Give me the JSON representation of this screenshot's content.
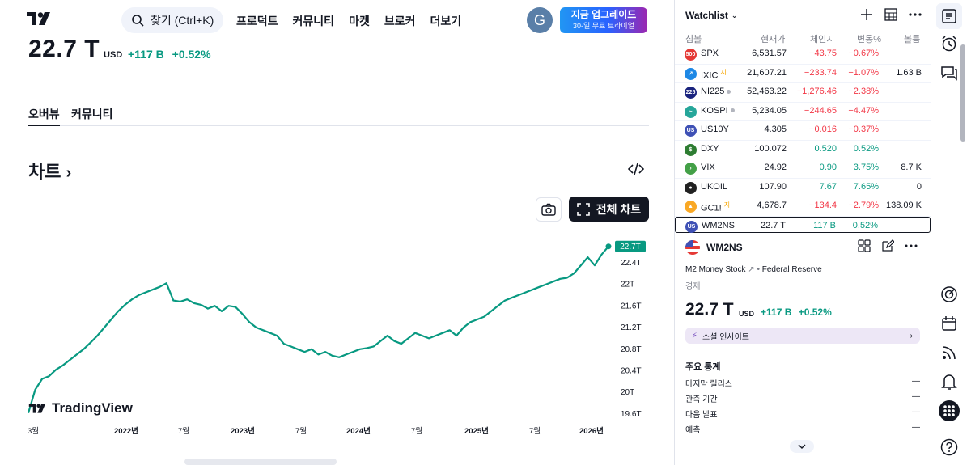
{
  "nav": {
    "search_placeholder": "찾기 (Ctrl+K)",
    "items": [
      "프로덕트",
      "커뮤니티",
      "마켓",
      "브로커",
      "더보기"
    ],
    "avatar_letter": "G",
    "upgrade_line1": "지금 업그레이드",
    "upgrade_line2": "30-일 무료 트라이얼"
  },
  "symbol": {
    "price": "22.7 T",
    "unit": "USD",
    "change_abs": "+117 B",
    "change_pct": "+0.52%"
  },
  "tabs": [
    "오버뷰",
    "커뮤니티"
  ],
  "chart_section": {
    "title": "차트",
    "full_chart_label": "전체 차트",
    "brand": "TradingView",
    "price_tag": "22.7T"
  },
  "chart_data": {
    "type": "line",
    "x_ticks": [
      "3월",
      "2022년",
      "7월",
      "2023년",
      "7월",
      "2024년",
      "7월",
      "2025년",
      "7월",
      "2026년"
    ],
    "y_ticks": [
      "22.4T",
      "22T",
      "21.6T",
      "21.2T",
      "20.8T",
      "20.4T",
      "20T",
      "19.6T"
    ],
    "ylim": [
      19.6,
      22.8
    ],
    "values": [
      19.62,
      20.05,
      20.25,
      20.3,
      20.42,
      20.5,
      20.6,
      20.7,
      20.8,
      20.92,
      21.05,
      21.2,
      21.35,
      21.5,
      21.62,
      21.72,
      21.8,
      21.85,
      21.9,
      21.95,
      22.02,
      21.7,
      21.68,
      21.72,
      21.65,
      21.62,
      21.55,
      21.6,
      21.5,
      21.6,
      21.58,
      21.45,
      21.3,
      21.2,
      21.15,
      21.1,
      21.05,
      20.9,
      20.85,
      20.8,
      20.75,
      20.8,
      20.7,
      20.75,
      20.68,
      20.65,
      20.7,
      20.75,
      20.8,
      20.82,
      20.85,
      20.95,
      21.05,
      20.95,
      20.9,
      21.0,
      21.1,
      21.05,
      21.0,
      21.05,
      21.1,
      21.15,
      21.05,
      21.2,
      21.3,
      21.35,
      21.4,
      21.5,
      21.6,
      21.7,
      21.75,
      21.8,
      21.85,
      21.9,
      21.95,
      22.0,
      22.05,
      22.1,
      22.12,
      22.2,
      22.35,
      22.5,
      22.35,
      22.55,
      22.7
    ],
    "last_value_label": "22.7T",
    "grid": false
  },
  "watchlist": {
    "title": "Watchlist",
    "headers": [
      "심볼",
      "현재가",
      "체인지",
      "변동%",
      "볼륨"
    ],
    "rows": [
      {
        "icon": "500",
        "color": "#e53935",
        "symbol": "SPX",
        "flag": "",
        "dot": false,
        "last": "6,531.57",
        "chg": "−43.75",
        "pct": "−0.67%",
        "vol": "",
        "dir": "dn"
      },
      {
        "icon": "↗",
        "color": "#1e88e5",
        "symbol": "IXIC",
        "flag": "지",
        "dot": false,
        "last": "21,607.21",
        "chg": "−233.74",
        "pct": "−1.07%",
        "vol": "1.63 B",
        "dir": "dn"
      },
      {
        "icon": "225",
        "color": "#1a237e",
        "symbol": "NI225",
        "flag": "",
        "dot": true,
        "last": "52,463.22",
        "chg": "−1,276.46",
        "pct": "−2.38%",
        "vol": "",
        "dir": "dn"
      },
      {
        "icon": "~",
        "color": "#26a69a",
        "symbol": "KOSPI",
        "flag": "",
        "dot": true,
        "last": "5,234.05",
        "chg": "−244.65",
        "pct": "−4.47%",
        "vol": "",
        "dir": "dn"
      },
      {
        "icon": "US",
        "color": "#3f51b5",
        "symbol": "US10Y",
        "flag": "",
        "dot": false,
        "last": "4.305",
        "chg": "−0.016",
        "pct": "−0.37%",
        "vol": "",
        "dir": "dn"
      },
      {
        "icon": "$",
        "color": "#2e7d32",
        "symbol": "DXY",
        "flag": "",
        "dot": false,
        "last": "100.072",
        "chg": "0.520",
        "pct": "0.52%",
        "vol": "",
        "dir": "up"
      },
      {
        "icon": "›",
        "color": "#43a047",
        "symbol": "VIX",
        "flag": "",
        "dot": false,
        "last": "24.92",
        "chg": "0.90",
        "pct": "3.75%",
        "vol": "8.7 K",
        "dir": "up"
      },
      {
        "icon": "●",
        "color": "#212121",
        "symbol": "UKOIL",
        "flag": "",
        "dot": false,
        "last": "107.90",
        "chg": "7.67",
        "pct": "7.65%",
        "vol": "0",
        "dir": "up"
      },
      {
        "icon": "▲",
        "color": "#f9a825",
        "symbol": "GC1!",
        "flag": "지",
        "dot": false,
        "last": "4,678.7",
        "chg": "−134.4",
        "pct": "−2.79%",
        "vol": "138.09 K",
        "dir": "dn"
      },
      {
        "icon": "US",
        "color": "#3f51b5",
        "symbol": "WM2NS",
        "flag": "",
        "dot": false,
        "last": "22.7 T",
        "chg": "117 B",
        "pct": "0.52%",
        "vol": "",
        "dir": "up"
      }
    ]
  },
  "detail": {
    "symbol": "WM2NS",
    "description": "M2 Money Stock",
    "source": "Federal Reserve",
    "category": "경제",
    "price": "22.7 T",
    "unit": "USD",
    "change_abs": "+117 B",
    "change_pct": "+0.52%",
    "insight": "소셜 인사이트",
    "stats_title": "주요 통계",
    "stats": [
      {
        "label": "마지막 릴리스",
        "value": "—"
      },
      {
        "label": "관측 기간",
        "value": "—"
      },
      {
        "label": "다음 발표",
        "value": "—"
      },
      {
        "label": "예측",
        "value": "—"
      }
    ]
  }
}
